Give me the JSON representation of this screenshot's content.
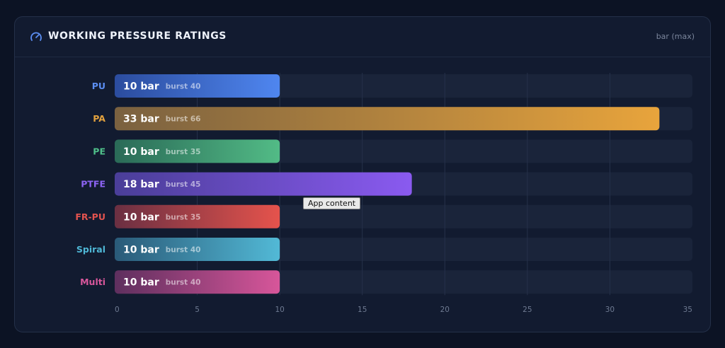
{
  "header": {
    "title": "WORKING PRESSURE RATINGS",
    "unit": "bar (max)"
  },
  "tooltip": "App content",
  "colors": {
    "background": "#0c1324",
    "card": "#121b30",
    "track": "#1a243a"
  },
  "chart_data": {
    "type": "bar",
    "orientation": "horizontal",
    "title": "WORKING PRESSURE RATINGS",
    "xlabel": "",
    "ylabel": "",
    "xlim": [
      0,
      35
    ],
    "x_ticks": [
      0,
      5,
      10,
      15,
      20,
      25,
      30,
      35
    ],
    "grid": true,
    "categories": [
      "PU",
      "PA",
      "PE",
      "PTFE",
      "FR-PU",
      "Spiral",
      "Multi"
    ],
    "values": [
      10,
      33,
      10,
      18,
      10,
      10,
      10
    ],
    "value_labels": [
      "10 bar",
      "33 bar",
      "10 bar",
      "18 bar",
      "10 bar",
      "10 bar",
      "10 bar"
    ],
    "burst_labels": [
      "burst 40",
      "burst 66",
      "burst 35",
      "burst 45",
      "burst 35",
      "burst 40",
      "burst 40"
    ],
    "colors": [
      {
        "label": "#5b8ef2",
        "from": "#2b4c9e",
        "to": "#4f86f0"
      },
      {
        "label": "#e3a23e",
        "from": "#7a6140",
        "to": "#e8a43c"
      },
      {
        "label": "#4fc08a",
        "from": "#2a6a57",
        "to": "#52bb86"
      },
      {
        "label": "#8b63f2",
        "from": "#4a3e98",
        "to": "#8a5af0"
      },
      {
        "label": "#e2534f",
        "from": "#6a2f42",
        "to": "#e5534c"
      },
      {
        "label": "#4fb8d6",
        "from": "#2a5a78",
        "to": "#52b9d6"
      },
      {
        "label": "#d9579c",
        "from": "#5e2f5e",
        "to": "#d7569a"
      }
    ]
  }
}
